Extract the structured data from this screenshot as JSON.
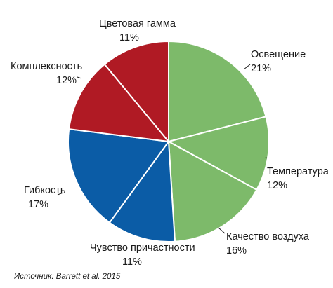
{
  "chart_data": {
    "type": "pie",
    "start_angle_deg": 0,
    "direction": "clockwise",
    "slices": [
      {
        "name": "Освещение",
        "value": 21,
        "value_label": "21%",
        "color": "#7dba6a"
      },
      {
        "name": "Температура",
        "value": 12,
        "value_label": "12%",
        "color": "#7dba6a"
      },
      {
        "name": "Качество воздуха",
        "value": 16,
        "value_label": "16%",
        "color": "#7dba6a"
      },
      {
        "name": "Чувство причастности",
        "value": 11,
        "value_label": "11%",
        "color": "#0b5ca6"
      },
      {
        "name": "Гибкость",
        "value": 17,
        "value_label": "17%",
        "color": "#0b5ca6"
      },
      {
        "name": "Комплексность",
        "value": 12,
        "value_label": "12%",
        "color": "#b01a24"
      },
      {
        "name": "Цветовая гамма",
        "value": 11,
        "value_label": "11%",
        "color": "#b01a24"
      }
    ],
    "source": "Источник: Barrett et al. 2015"
  }
}
